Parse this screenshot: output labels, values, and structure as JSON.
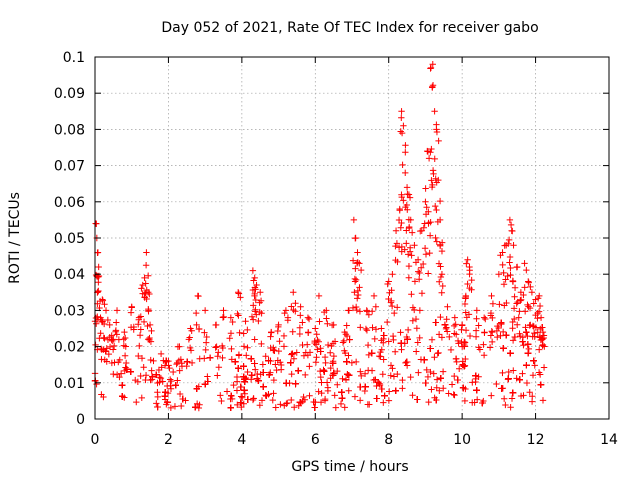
{
  "chart_data": {
    "type": "scatter",
    "title": "Day 052 of 2021, Rate Of TEC Index for receiver gabo",
    "xlabel": "GPS time / hours",
    "ylabel": "ROTI / TECUs",
    "xlim": [
      0,
      14
    ],
    "ylim": [
      0,
      0.1
    ],
    "x_ticks": [
      "0",
      "2",
      "4",
      "6",
      "8",
      "10",
      "12",
      "14"
    ],
    "y_ticks": [
      "0",
      "0.01",
      "0.02",
      "0.03",
      "0.04",
      "0.05",
      "0.06",
      "0.07",
      "0.08",
      "0.09",
      "0.1"
    ],
    "grid": true,
    "marker": "+",
    "series": [
      {
        "color": "#ff0000",
        "points": [
          [
            0.0,
            0.027
          ],
          [
            0.02,
            0.054
          ],
          [
            0.05,
            0.05
          ],
          [
            0.08,
            0.046
          ],
          [
            0.1,
            0.042
          ],
          [
            0.15,
            0.028
          ],
          [
            0.2,
            0.033
          ],
          [
            0.3,
            0.03
          ],
          [
            0.4,
            0.026
          ],
          [
            0.5,
            0.022
          ],
          [
            0.6,
            0.03
          ],
          [
            0.8,
            0.024
          ],
          [
            1.0,
            0.031
          ],
          [
            1.2,
            0.028
          ],
          [
            1.3,
            0.037
          ],
          [
            1.35,
            0.039
          ],
          [
            1.4,
            0.046
          ],
          [
            1.45,
            0.035
          ],
          [
            1.5,
            0.026
          ],
          [
            1.8,
            0.018
          ],
          [
            2.0,
            0.016
          ],
          [
            2.3,
            0.02
          ],
          [
            2.6,
            0.025
          ],
          [
            2.8,
            0.034
          ],
          [
            3.0,
            0.03
          ],
          [
            3.3,
            0.026
          ],
          [
            3.5,
            0.03
          ],
          [
            3.7,
            0.028
          ],
          [
            3.9,
            0.035
          ],
          [
            4.1,
            0.027
          ],
          [
            4.3,
            0.041
          ],
          [
            4.35,
            0.039
          ],
          [
            4.4,
            0.037
          ],
          [
            4.5,
            0.035
          ],
          [
            4.8,
            0.024
          ],
          [
            5.0,
            0.026
          ],
          [
            5.2,
            0.03
          ],
          [
            5.4,
            0.035
          ],
          [
            5.6,
            0.031
          ],
          [
            5.8,
            0.028
          ],
          [
            6.0,
            0.025
          ],
          [
            6.1,
            0.034
          ],
          [
            6.3,
            0.03
          ],
          [
            6.5,
            0.026
          ],
          [
            6.8,
            0.024
          ],
          [
            6.9,
            0.03
          ],
          [
            7.05,
            0.055
          ],
          [
            7.1,
            0.05
          ],
          [
            7.15,
            0.046
          ],
          [
            7.2,
            0.043
          ],
          [
            7.4,
            0.03
          ],
          [
            7.6,
            0.034
          ],
          [
            7.8,
            0.025
          ],
          [
            8.0,
            0.038
          ],
          [
            8.1,
            0.04
          ],
          [
            8.2,
            0.052
          ],
          [
            8.3,
            0.058
          ],
          [
            8.35,
            0.085
          ],
          [
            8.4,
            0.081
          ],
          [
            8.45,
            0.068
          ],
          [
            8.5,
            0.064
          ],
          [
            8.55,
            0.062
          ],
          [
            8.6,
            0.055
          ],
          [
            8.7,
            0.048
          ],
          [
            8.8,
            0.044
          ],
          [
            8.9,
            0.052
          ],
          [
            9.0,
            0.06
          ],
          [
            9.05,
            0.074
          ],
          [
            9.1,
            0.072
          ],
          [
            9.15,
            0.097
          ],
          [
            9.2,
            0.098
          ],
          [
            9.25,
            0.085
          ],
          [
            9.3,
            0.08
          ],
          [
            9.35,
            0.066
          ],
          [
            9.4,
            0.055
          ],
          [
            9.45,
            0.04
          ],
          [
            9.6,
            0.031
          ],
          [
            9.8,
            0.028
          ],
          [
            10.0,
            0.026
          ],
          [
            10.1,
            0.034
          ],
          [
            10.15,
            0.044
          ],
          [
            10.2,
            0.042
          ],
          [
            10.4,
            0.03
          ],
          [
            10.6,
            0.028
          ],
          [
            10.8,
            0.034
          ],
          [
            11.0,
            0.04
          ],
          [
            11.1,
            0.046
          ],
          [
            11.2,
            0.048
          ],
          [
            11.3,
            0.055
          ],
          [
            11.35,
            0.052
          ],
          [
            11.4,
            0.048
          ],
          [
            11.5,
            0.042
          ],
          [
            11.6,
            0.035
          ],
          [
            11.7,
            0.043
          ],
          [
            11.8,
            0.038
          ],
          [
            11.9,
            0.035
          ],
          [
            12.0,
            0.033
          ],
          [
            12.1,
            0.034
          ],
          [
            12.15,
            0.028
          ],
          [
            12.2,
            0.024
          ]
        ],
        "dense_band": {
          "x_range": [
            0,
            12.25
          ],
          "baseline": [
            [
              0,
              0.004,
              0.02
            ],
            [
              2,
              0.003,
              0.016
            ],
            [
              4,
              0.003,
              0.019
            ],
            [
              6,
              0.003,
              0.019
            ],
            [
              7.5,
              0.003,
              0.018
            ],
            [
              8.0,
              0.005,
              0.025
            ],
            [
              9.5,
              0.004,
              0.028
            ],
            [
              10.0,
              0.005,
              0.023
            ],
            [
              11.0,
              0.003,
              0.03
            ],
            [
              12.25,
              0.003,
              0.028
            ]
          ]
        }
      }
    ]
  }
}
